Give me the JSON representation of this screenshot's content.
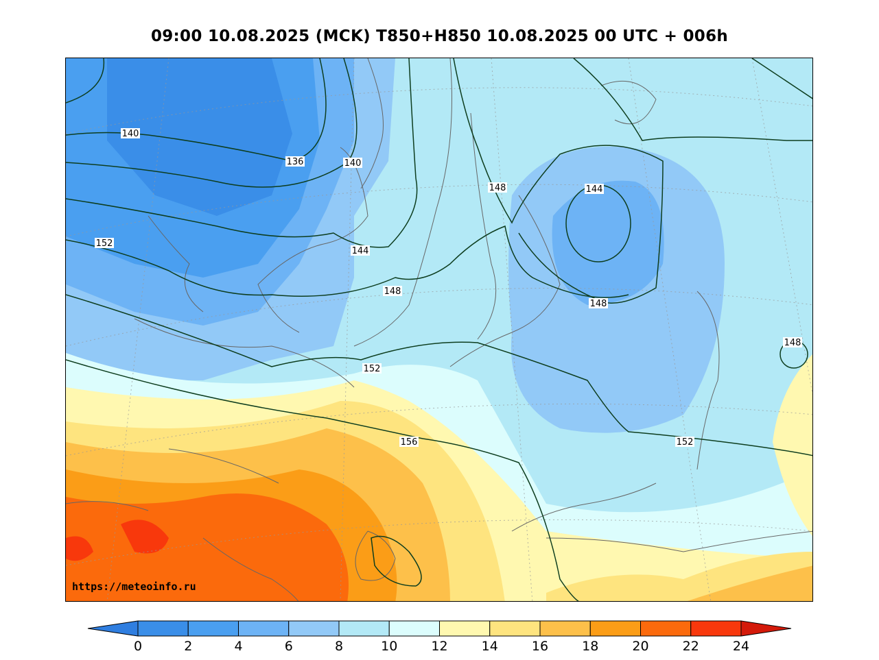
{
  "title": "09:00 10.08.2025 (MCK) T850+H850 10.08.2025 00 UTC + 006h",
  "watermark": "https://meteoinfo.ru",
  "colorbar": {
    "ticks": [
      "0",
      "2",
      "4",
      "6",
      "8",
      "10",
      "12",
      "14",
      "16",
      "18",
      "20",
      "22",
      "24"
    ],
    "colors": [
      "#3a8ee8",
      "#4a9ff0",
      "#6db3f5",
      "#92c9f7",
      "#b3e9f6",
      "#dcfdfd",
      "#fff8b0",
      "#fee47f",
      "#fdc04a",
      "#fb9d17",
      "#fb6a0c",
      "#f8380c"
    ],
    "under_color": "#2f7ee0",
    "over_color": "#d41a0a"
  },
  "isolines": {
    "labels": [
      "140",
      "136",
      "140",
      "148",
      "144",
      "152",
      "144",
      "148",
      "148",
      "152",
      "148",
      "156",
      "152"
    ]
  }
}
